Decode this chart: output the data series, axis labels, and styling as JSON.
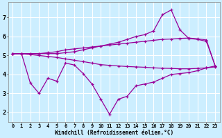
{
  "bg_color": "#cceeff",
  "grid_color": "#ffffff",
  "line_color": "#990099",
  "x_values": [
    0,
    1,
    2,
    3,
    4,
    5,
    6,
    7,
    8,
    9,
    10,
    11,
    12,
    13,
    14,
    15,
    16,
    17,
    18,
    19,
    20,
    21,
    22,
    23
  ],
  "s_spike": [
    5.1,
    5.1,
    5.1,
    5.1,
    5.1,
    5.1,
    5.15,
    5.2,
    5.3,
    5.4,
    5.5,
    5.6,
    5.7,
    5.85,
    6.0,
    6.1,
    6.3,
    7.15,
    7.4,
    6.35,
    5.9,
    5.85,
    5.75,
    4.45
  ],
  "s_upper": [
    5.1,
    5.1,
    5.1,
    5.1,
    5.15,
    5.2,
    5.3,
    5.35,
    5.4,
    5.45,
    5.5,
    5.55,
    5.6,
    5.65,
    5.7,
    5.75,
    5.8,
    5.85,
    5.87,
    5.9,
    5.92,
    5.88,
    5.82,
    4.45
  ],
  "s_lower": [
    5.1,
    5.1,
    5.05,
    5.0,
    4.95,
    4.9,
    4.82,
    4.75,
    4.68,
    4.6,
    4.52,
    4.48,
    4.45,
    4.42,
    4.4,
    4.38,
    4.35,
    4.33,
    4.32,
    4.3,
    4.3,
    4.32,
    4.35,
    4.4
  ],
  "s_noisy": [
    5.1,
    5.1,
    3.55,
    3.0,
    3.8,
    3.65,
    4.6,
    4.5,
    4.05,
    3.5,
    2.7,
    1.9,
    2.7,
    2.85,
    3.4,
    3.5,
    3.6,
    3.8,
    4.0,
    4.05,
    4.1,
    4.2,
    4.35,
    4.45
  ],
  "ylim": [
    1.5,
    7.8
  ],
  "yticks": [
    2,
    3,
    4,
    5,
    6,
    7
  ],
  "xlim": [
    -0.5,
    23.5
  ],
  "xticks": [
    0,
    1,
    2,
    3,
    4,
    5,
    6,
    7,
    8,
    9,
    10,
    11,
    12,
    13,
    14,
    15,
    16,
    17,
    18,
    19,
    20,
    21,
    22,
    23
  ],
  "xlabel": "Windchill (Refroidissement éolien,°C)"
}
